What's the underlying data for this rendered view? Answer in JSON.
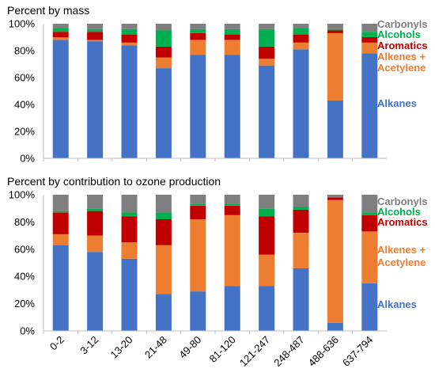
{
  "chart_data": [
    {
      "type": "bar",
      "stacked": true,
      "title": "Percent by mass",
      "xlabel": "",
      "ylabel": "",
      "ylim": [
        0,
        100
      ],
      "ytick_labels": [
        "0%",
        "20%",
        "40%",
        "60%",
        "80%",
        "100%"
      ],
      "grid": false,
      "legend_position": "right",
      "categories": [
        "0-2",
        "3-12",
        "13-20",
        "21-48",
        "49-80",
        "81-120",
        "121-247",
        "248-487",
        "488-636",
        "637-794"
      ],
      "series": [
        {
          "name": "Alkanes",
          "color": "#4472c4",
          "values": [
            88,
            87,
            84,
            67,
            77,
            77,
            69,
            81,
            43,
            78
          ]
        },
        {
          "name": "Alkenes + Acetylene",
          "color": "#ed7d31",
          "values": [
            2,
            1,
            2,
            8,
            11,
            11,
            5,
            5,
            50,
            8
          ]
        },
        {
          "name": "Aromatics",
          "color": "#c00000",
          "values": [
            4,
            6,
            6,
            8,
            5,
            4,
            9,
            6,
            2,
            4
          ]
        },
        {
          "name": "Alcohols",
          "color": "#00b050",
          "values": [
            3,
            2,
            4,
            12,
            3,
            4,
            13,
            5,
            1,
            4
          ]
        },
        {
          "name": "Carbonyls",
          "color": "#7f7f7f",
          "values": [
            3,
            4,
            4,
            5,
            4,
            4,
            4,
            3,
            4,
            6
          ]
        }
      ]
    },
    {
      "type": "bar",
      "stacked": true,
      "title": "Percent by contribution to ozone production",
      "xlabel": "",
      "ylabel": "",
      "ylim": [
        0,
        100
      ],
      "ytick_labels": [
        "0%",
        "20%",
        "40%",
        "60%",
        "80%",
        "100%"
      ],
      "grid": false,
      "legend_position": "right",
      "categories": [
        "0-2",
        "3-12",
        "13-20",
        "21-48",
        "49-80",
        "81-120",
        "121-247",
        "248-487",
        "488-636",
        "637-794"
      ],
      "series": [
        {
          "name": "Alkanes",
          "color": "#4472c4",
          "values": [
            63,
            58,
            53,
            27,
            29,
            33,
            33,
            46,
            6,
            35
          ]
        },
        {
          "name": "Alkenes + Acetylene",
          "color": "#ed7d31",
          "values": [
            8,
            12,
            12,
            36,
            53,
            52,
            23,
            26,
            90,
            38
          ]
        },
        {
          "name": "Aromatics",
          "color": "#c00000",
          "values": [
            16,
            18,
            19,
            19,
            10,
            7,
            28,
            17,
            2,
            12
          ]
        },
        {
          "name": "Alcohols",
          "color": "#00b050",
          "values": [
            1,
            2,
            3,
            5,
            1,
            1,
            6,
            2,
            0,
            2
          ]
        },
        {
          "name": "Carbonyls",
          "color": "#7f7f7f",
          "values": [
            12,
            10,
            13,
            13,
            7,
            7,
            10,
            9,
            2,
            13
          ]
        }
      ]
    }
  ],
  "legend": {
    "carbonyls": "Carbonyls",
    "alcohols": "Alcohols",
    "aromatics": "Aromatics",
    "alkenes_line1": "Alkenes +",
    "alkenes_line2": "Acetylene",
    "alkanes": "Alkanes"
  }
}
